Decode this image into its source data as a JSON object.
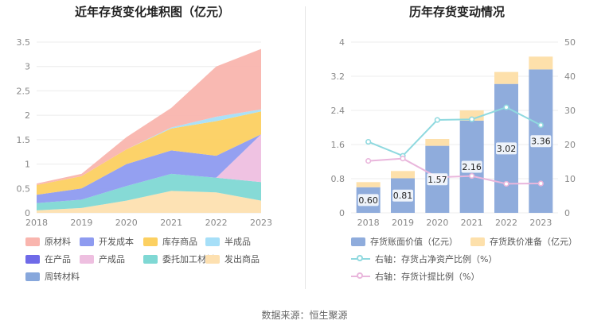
{
  "footer": {
    "source": "数据来源：恒生聚源"
  },
  "chart_data": [
    {
      "type": "area",
      "stacked": true,
      "title": "近年存货变化堆积图（亿元）",
      "x": [
        "2018",
        "2019",
        "2020",
        "2021",
        "2022",
        "2023"
      ],
      "ylim": [
        0,
        3.5
      ],
      "yticks": [
        "0",
        "0.5",
        "1",
        "1.5",
        "2",
        "2.5",
        "3",
        "3.5"
      ],
      "grid": true,
      "legend_position": "bottom",
      "series": [
        {
          "name": "发出商品",
          "color": "#fde0b0",
          "values": [
            0.05,
            0.1,
            0.25,
            0.45,
            0.42,
            0.25
          ]
        },
        {
          "name": "委托加工材料",
          "color": "#7fd8d4",
          "values": [
            0.15,
            0.17,
            0.3,
            0.35,
            0.3,
            0.38
          ]
        },
        {
          "name": "产成品",
          "color": "#eebfe0",
          "values": [
            0,
            0,
            0,
            0,
            0,
            0.98
          ]
        },
        {
          "name": "在产品",
          "color": "#6f6ae8",
          "values": [
            0,
            0,
            0,
            0,
            0,
            0
          ]
        },
        {
          "name": "开发成本",
          "color": "#8e9bf0",
          "values": [
            0.17,
            0.23,
            0.45,
            0.48,
            0.45,
            0
          ]
        },
        {
          "name": "库存商品",
          "color": "#fcd061",
          "values": [
            0.2,
            0.25,
            0.3,
            0.45,
            0.71,
            0.47
          ]
        },
        {
          "name": "半成品",
          "color": "#a6dff8",
          "values": [
            0,
            0,
            0,
            0.02,
            0.09,
            0.04
          ]
        },
        {
          "name": "周转材料",
          "color": "#87a7dc",
          "values": [
            0,
            0,
            0,
            0,
            0,
            0
          ]
        },
        {
          "name": "原材料",
          "color": "#f9b5ae",
          "values": [
            0.03,
            0.05,
            0.25,
            0.4,
            1.03,
            1.24
          ]
        }
      ],
      "legend_order": [
        "原材料",
        "开发成本",
        "库存商品",
        "半成品",
        "在产品",
        "产成品",
        "委托加工材料",
        "发出商品",
        "周转材料"
      ]
    },
    {
      "type": "bar",
      "stacked": true,
      "title": "历年存货变动情况",
      "categories": [
        "2018",
        "2019",
        "2020",
        "2021",
        "2022",
        "2023"
      ],
      "ylim_left": [
        0,
        4
      ],
      "yticks_left": [
        "0",
        "0.8",
        "1.6",
        "2.4",
        "3.2",
        "4"
      ],
      "ylim_right": [
        0,
        50
      ],
      "yticks_right": [
        "0",
        "10",
        "20",
        "30",
        "40",
        "50"
      ],
      "grid": true,
      "legend_position": "bottom",
      "bars": [
        {
          "name": "存货账面价值（亿元）",
          "color": "#8facdc",
          "values": [
            0.6,
            0.81,
            1.57,
            2.16,
            3.02,
            3.36
          ],
          "labels": [
            "0.60",
            "0.81",
            "1.57",
            "2.16",
            "3.02",
            "3.36"
          ]
        },
        {
          "name": "存货跌价准备（亿元）",
          "color": "#fde0ab",
          "values": [
            0.12,
            0.17,
            0.16,
            0.24,
            0.28,
            0.3
          ]
        }
      ],
      "lines": [
        {
          "name": "右轴：存货占净资产比例（%）",
          "color": "#8fd9df",
          "axis": "right",
          "values": [
            20.8,
            16.7,
            27.2,
            27.4,
            30.9,
            25.7
          ]
        },
        {
          "name": "右轴：存货计提比例（%）",
          "color": "#e9b6dc",
          "axis": "right",
          "values": [
            15.2,
            15.9,
            10.4,
            10.8,
            8.5,
            8.6
          ]
        }
      ]
    }
  ]
}
